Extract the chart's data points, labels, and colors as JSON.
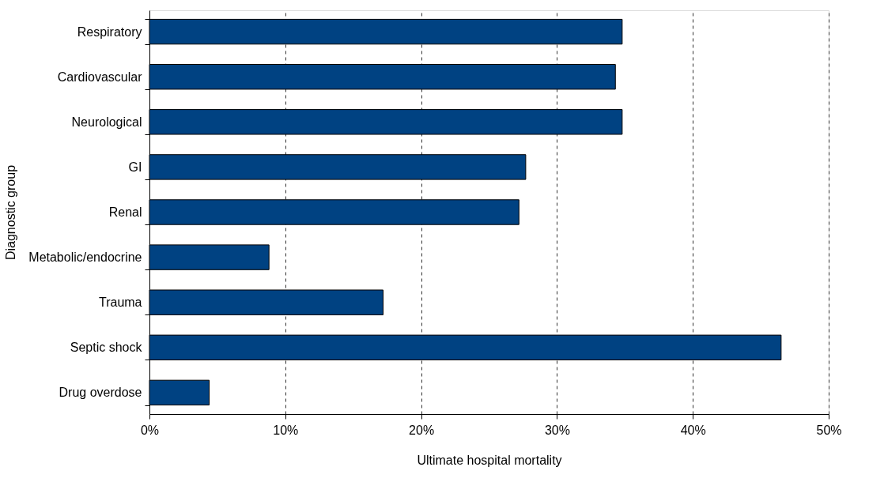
{
  "chart_data": {
    "type": "bar",
    "orientation": "horizontal",
    "xlabel": "Ultimate hospital mortality",
    "ylabel": "Diagnostic group",
    "categories": [
      "Respiratory",
      "Cardiovascular",
      "Neurological",
      "GI",
      "Renal",
      "Metabolic/endocrine",
      "Trauma",
      "Septic shock",
      "Drug overdose"
    ],
    "values": [
      34.8,
      34.3,
      34.8,
      27.7,
      27.2,
      8.8,
      17.2,
      46.5,
      4.4
    ],
    "color": "#004282",
    "xlim": [
      0,
      50
    ],
    "xticks": [
      {
        "value": 0,
        "label": "0%"
      },
      {
        "value": 10,
        "label": "10%"
      },
      {
        "value": 20,
        "label": "20%"
      },
      {
        "value": 30,
        "label": "30%"
      },
      {
        "value": 40,
        "label": "40%"
      },
      {
        "value": 50,
        "label": "50%"
      }
    ],
    "grid": "x"
  }
}
